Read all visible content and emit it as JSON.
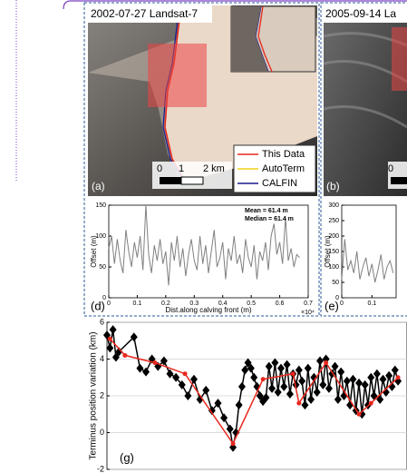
{
  "figure": {
    "panels": [
      {
        "label": "(a)",
        "date": "2002-07-27 Landsat-7",
        "legend": [
          {
            "name": "This Data",
            "color": "#e8281e"
          },
          {
            "name": "AutoTerm",
            "color": "#f2d21b"
          },
          {
            "name": "CALFIN",
            "color": "#1a1a8c"
          }
        ],
        "scale": [
          "0",
          "1",
          "2 km"
        ]
      },
      {
        "label": "(b)",
        "date": "2005-09-14 La",
        "scale": [
          "0"
        ]
      }
    ]
  },
  "chart_data": [
    {
      "type": "line",
      "label": "(d)",
      "xlabel": "Dist.along calving front (m)",
      "ylabel": "Offset (m)",
      "x_exponent": "×10⁴",
      "annotations": [
        "Mean = 61.4 m",
        "Median = 61.4 m"
      ],
      "color": "#808080",
      "x": [
        0,
        0.01,
        0.02,
        0.03,
        0.04,
        0.05,
        0.06,
        0.07,
        0.08,
        0.09,
        0.1,
        0.11,
        0.12,
        0.13,
        0.14,
        0.15,
        0.16,
        0.17,
        0.18,
        0.19,
        0.2,
        0.21,
        0.22,
        0.23,
        0.24,
        0.25,
        0.26,
        0.27,
        0.28,
        0.29,
        0.3,
        0.31,
        0.32,
        0.33,
        0.34,
        0.35,
        0.36,
        0.37,
        0.38,
        0.39,
        0.4,
        0.41,
        0.42,
        0.43,
        0.44,
        0.45,
        0.46,
        0.47,
        0.48,
        0.49,
        0.5,
        0.51,
        0.52,
        0.53,
        0.54,
        0.55,
        0.56,
        0.57,
        0.58,
        0.59,
        0.6,
        0.61,
        0.62,
        0.63,
        0.64,
        0.65,
        0.66,
        0.67
      ],
      "values": [
        80,
        100,
        55,
        95,
        60,
        40,
        110,
        75,
        50,
        90,
        65,
        100,
        45,
        150,
        70,
        40,
        85,
        60,
        95,
        55,
        75,
        20,
        90,
        60,
        100,
        50,
        80,
        35,
        70,
        95,
        60,
        45,
        100,
        55,
        85,
        40,
        75,
        110,
        50,
        65,
        90,
        30,
        80,
        60,
        100,
        55,
        70,
        40,
        95,
        65,
        50,
        85,
        30,
        75,
        60,
        90,
        45,
        100,
        120,
        70,
        90,
        55,
        130,
        60,
        80,
        50,
        70,
        65
      ],
      "xlim": [
        0,
        0.7
      ],
      "xticks": [
        0,
        0.1,
        0.2,
        0.3,
        0.4,
        0.5,
        0.6,
        0.7
      ],
      "ylim": [
        0,
        150
      ],
      "yticks": [
        0,
        50,
        100,
        150
      ]
    },
    {
      "type": "line",
      "label": "(e)",
      "ylabel": "Offset (m)",
      "color": "#808080",
      "x": [
        0,
        0.01,
        0.02,
        0.03,
        0.04,
        0.05,
        0.06,
        0.07,
        0.08,
        0.09,
        0.1,
        0.11,
        0.12,
        0.13,
        0.14,
        0.15,
        0.16,
        0.17
      ],
      "values": [
        60,
        190,
        90,
        120,
        80,
        150,
        60,
        100,
        130,
        70,
        110,
        50,
        90,
        140,
        60,
        100,
        120,
        80
      ],
      "xlim": [
        0,
        0.18
      ],
      "xticks": [
        0,
        0.1
      ],
      "ylim": [
        0,
        300
      ],
      "yticks": [
        0,
        50,
        100,
        150,
        200,
        250,
        300
      ]
    },
    {
      "type": "line",
      "label": "(g)",
      "ylabel": "Terminus position variation (km)",
      "grid": true,
      "xlim": [
        0,
        100
      ],
      "ylim": [
        -2,
        6
      ],
      "yticks": [
        -2,
        0,
        2,
        4,
        6
      ],
      "series": [
        {
          "color": "#000000",
          "marker": "diamond",
          "x": [
            0,
            1,
            2,
            3,
            4,
            9,
            11,
            13,
            15,
            17,
            19,
            21,
            23,
            25,
            27,
            29,
            31,
            33,
            35,
            37,
            39,
            41,
            42,
            43,
            44,
            45,
            46,
            47,
            48,
            49,
            50,
            51,
            52,
            53,
            54,
            55,
            56,
            57,
            58,
            59,
            60,
            61,
            62,
            63,
            64,
            65,
            66,
            67,
            68,
            69,
            70,
            71,
            72,
            73,
            74,
            75,
            76,
            77,
            78,
            79,
            80,
            81,
            82,
            83,
            84,
            85,
            86,
            87,
            88,
            89,
            90,
            91,
            92,
            93,
            94,
            95,
            96,
            97
          ],
          "values": [
            5.3,
            4.6,
            5.6,
            4.1,
            4.4,
            5.2,
            3.5,
            3.3,
            4.0,
            3.6,
            3.9,
            3.2,
            3.0,
            2.6,
            2.0,
            2.9,
            1.8,
            2.3,
            1.2,
            1.6,
            0.8,
            0.2,
            -0.8,
            0.0,
            1.5,
            2.5,
            3.4,
            3.8,
            3.5,
            3.0,
            2.5,
            2.0,
            1.7,
            1.9,
            3.6,
            2.4,
            3.8,
            2.2,
            3.5,
            2.5,
            3.7,
            2.1,
            3.2,
            2.6,
            3.4,
            2.8,
            1.5,
            3.5,
            1.8,
            3.0,
            2.2,
            3.9,
            2.6,
            4.0,
            2.4,
            3.2,
            3.6,
            1.8,
            3.3,
            2.0,
            2.8,
            1.5,
            2.9,
            1.2,
            2.7,
            1.0,
            2.6,
            1.5,
            3.0,
            2.0,
            3.2,
            1.8,
            2.9,
            2.2,
            3.1,
            2.5,
            3.4,
            2.8
          ]
        },
        {
          "color": "#e8281e",
          "marker": "circle",
          "x": [
            1,
            6,
            16,
            26,
            42,
            52,
            62,
            64,
            73,
            84,
            88,
            97
          ],
          "values": [
            5.1,
            4.2,
            3.8,
            3.2,
            -0.6,
            2.9,
            3.2,
            1.6,
            3.8,
            1.0,
            1.6,
            3.0
          ]
        }
      ]
    }
  ]
}
